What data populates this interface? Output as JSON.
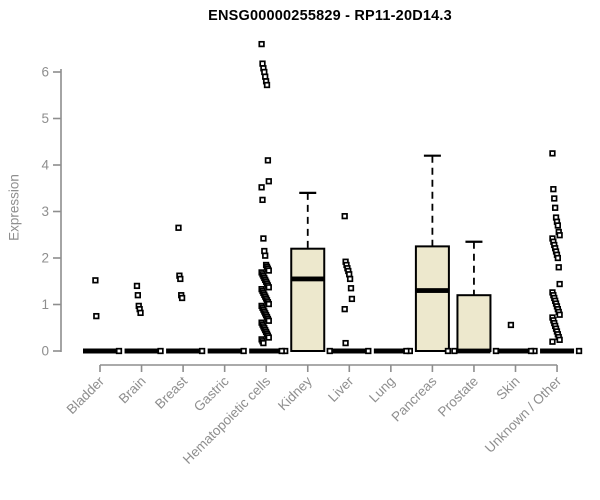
{
  "chart_data": {
    "type": "boxplot",
    "title": "ENSG00000255829 - RP11-20D14.3",
    "xlabel": "",
    "ylabel": "Expression",
    "ylim": [
      0,
      6.7
    ],
    "yticks": [
      0,
      1,
      2,
      3,
      4,
      5,
      6
    ],
    "grid": false,
    "legend": "none",
    "colors": {
      "box_fill": "#ede8cd",
      "box_stroke": "#000000",
      "median": "#000000",
      "point_stroke": "#000000",
      "axis": "#8e8e8e",
      "title": "#000000"
    },
    "categories": [
      "Bladder",
      "Brain",
      "Breast",
      "Gastric",
      "Hematopoietic cells",
      "Kidney",
      "Liver",
      "Lung",
      "Pancreas",
      "Prostate",
      "Skin",
      "Unknown / Other"
    ],
    "series": [
      {
        "category": "Bladder",
        "box": {
          "q1": 0,
          "median": 0,
          "q3": 0,
          "whisker_low": 0,
          "whisker_high": 0
        },
        "points": [
          1.52,
          0.75
        ],
        "zero_points": 1
      },
      {
        "category": "Brain",
        "box": {
          "q1": 0,
          "median": 0,
          "q3": 0,
          "whisker_low": 0,
          "whisker_high": 0
        },
        "points": [
          1.4,
          1.2,
          0.97,
          0.9,
          0.82
        ],
        "zero_points": 1
      },
      {
        "category": "Breast",
        "box": {
          "q1": 0,
          "median": 0,
          "q3": 0,
          "whisker_low": 0,
          "whisker_high": 0
        },
        "points": [
          2.65,
          1.62,
          1.55,
          1.2,
          1.14
        ],
        "zero_points": 1
      },
      {
        "category": "Gastric",
        "box": {
          "q1": 0,
          "median": 0,
          "q3": 0,
          "whisker_low": 0,
          "whisker_high": 0
        },
        "points": [],
        "zero_points": 1
      },
      {
        "category": "Hematopoietic cells",
        "box": {
          "q1": 0,
          "median": 0,
          "q3": 0,
          "whisker_low": 0,
          "whisker_high": 0
        },
        "points": [
          6.6,
          6.18,
          6.08,
          6.0,
          5.9,
          5.8,
          5.72,
          4.1,
          3.65,
          3.52,
          3.25,
          2.42,
          2.15,
          2.05,
          1.85,
          1.81,
          1.77,
          1.73,
          1.69,
          1.65,
          1.61,
          1.57,
          1.53,
          1.49,
          1.45,
          1.41,
          1.37,
          1.33,
          1.29,
          1.25,
          1.21,
          1.17,
          1.13,
          1.09,
          1.05,
          1.01,
          0.97,
          0.93,
          0.89,
          0.85,
          0.81,
          0.77,
          0.73,
          0.69,
          0.65,
          0.61,
          0.57,
          0.53,
          0.49,
          0.45,
          0.41,
          0.37,
          0.33,
          0.29,
          0.25,
          0.21,
          0.17
        ],
        "zero_points": 1
      },
      {
        "category": "Kidney",
        "box": {
          "q1": 0,
          "median": 1.55,
          "q3": 2.2,
          "whisker_low": 0,
          "whisker_high": 3.4
        },
        "points": [],
        "zero_points": 2
      },
      {
        "category": "Liver",
        "box": {
          "q1": 0,
          "median": 0,
          "q3": 0,
          "whisker_low": 0,
          "whisker_high": 0
        },
        "points": [
          2.9,
          1.92,
          1.85,
          1.78,
          1.72,
          1.65,
          1.55,
          1.35,
          1.12,
          0.9,
          0.17
        ],
        "zero_points": 1
      },
      {
        "category": "Lung",
        "box": {
          "q1": 0,
          "median": 0,
          "q3": 0,
          "whisker_low": 0,
          "whisker_high": 0
        },
        "points": [],
        "zero_points": 1
      },
      {
        "category": "Pancreas",
        "box": {
          "q1": 0,
          "median": 1.3,
          "q3": 2.25,
          "whisker_low": 0,
          "whisker_high": 4.2
        },
        "points": [],
        "zero_points": 2
      },
      {
        "category": "Prostate",
        "box": {
          "q1": 0,
          "median": 0,
          "q3": 1.2,
          "whisker_low": 0,
          "whisker_high": 2.35
        },
        "points": [],
        "zero_points": 2
      },
      {
        "category": "Skin",
        "box": {
          "q1": 0,
          "median": 0,
          "q3": 0,
          "whisker_low": 0,
          "whisker_high": 0
        },
        "points": [
          0.56
        ],
        "zero_points": 1
      },
      {
        "category": "Unknown / Other",
        "box": {
          "q1": 0,
          "median": 0,
          "q3": 0,
          "whisker_low": 0,
          "whisker_high": 0
        },
        "points": [
          4.25,
          3.48,
          3.28,
          3.08,
          2.87,
          2.78,
          2.7,
          2.56,
          2.49,
          2.42,
          2.35,
          2.28,
          2.21,
          2.14,
          2.07,
          2.0,
          1.8,
          1.44,
          1.26,
          1.2,
          1.14,
          1.08,
          1.02,
          0.96,
          0.9,
          0.84,
          0.78,
          0.72,
          0.66,
          0.6,
          0.54,
          0.48,
          0.42,
          0.36,
          0.3,
          0.24,
          0.2
        ],
        "zero_points": 2
      }
    ]
  }
}
